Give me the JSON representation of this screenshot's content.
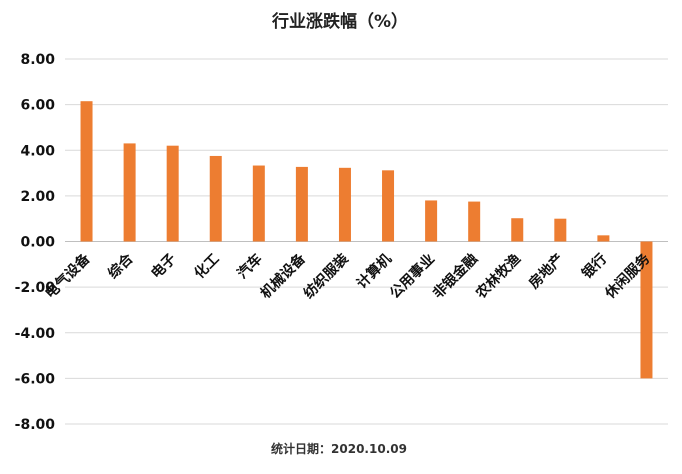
{
  "chart_data": {
    "type": "bar",
    "title": "行业涨跌幅（%）",
    "categories": [
      "电气设备",
      "综合",
      "电子",
      "化工",
      "汽车",
      "机械设备",
      "纺织服装",
      "计算机",
      "公用事业",
      "非银金融",
      "农林牧渔",
      "房地产",
      "银行",
      "休闲服务"
    ],
    "values": [
      6.15,
      4.3,
      4.2,
      3.75,
      3.33,
      3.27,
      3.23,
      3.12,
      1.8,
      1.75,
      1.02,
      1.0,
      0.27,
      -6.0
    ],
    "ylim": [
      -8,
      8
    ],
    "yticks": [
      "8.00",
      "6.00",
      "4.00",
      "2.00",
      "0.00",
      "-2.00",
      "-4.00",
      "-6.00",
      "-8.00"
    ],
    "grid": true,
    "legend": "none",
    "bar_color": "#ED7D31",
    "xlabel": "",
    "ylabel": ""
  },
  "footnote": "统计日期：2020.10.09"
}
